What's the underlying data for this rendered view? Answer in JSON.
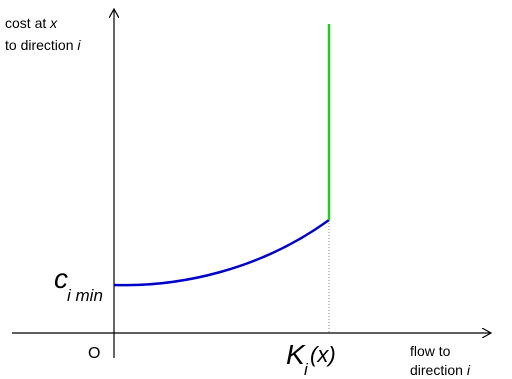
{
  "y_axis_label": {
    "line1_text": "cost at ",
    "line1_var": "x",
    "line2_text": "to direction ",
    "line2_var": "i"
  },
  "x_axis_label": {
    "line1_text": "flow to",
    "line2_text": "direction ",
    "line2_var": "i"
  },
  "origin_label": "O",
  "c_min_label": {
    "main": "c",
    "sub": "i min"
  },
  "k_label": {
    "main": "K",
    "sub": "i",
    "arg": " (x)"
  },
  "colors": {
    "cost_curve": "#0000c8",
    "vertical_segment": "#22cc22",
    "axes": "#000000",
    "dotted_guide": "#888888"
  }
}
